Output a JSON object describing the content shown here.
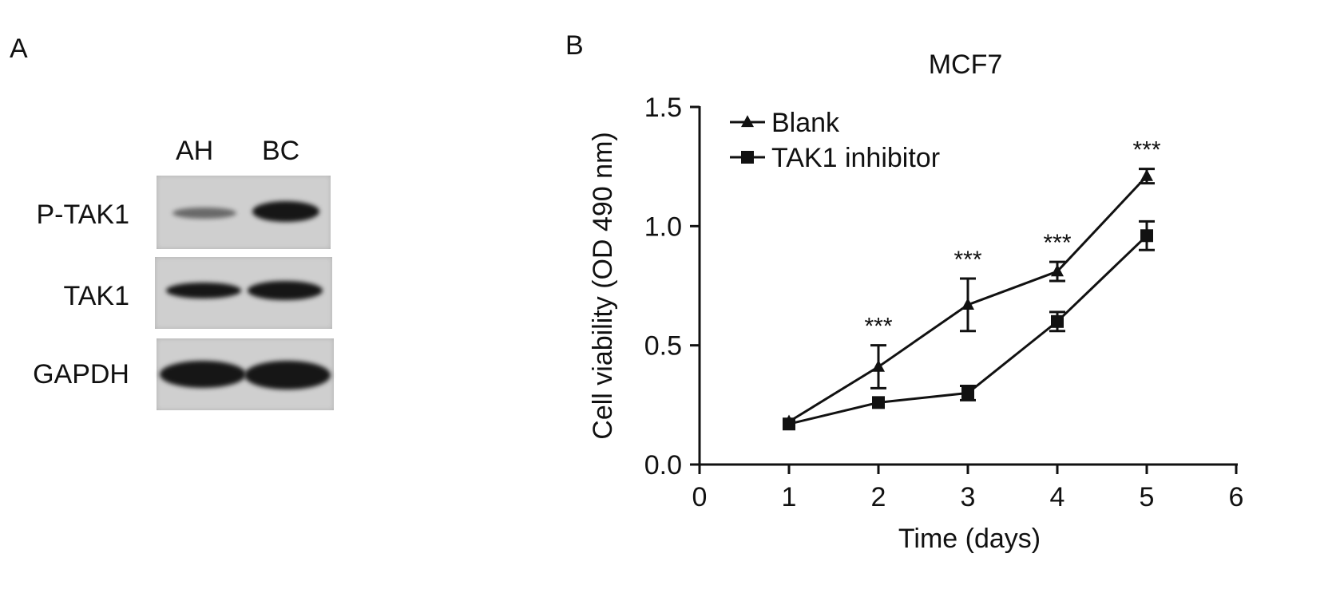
{
  "panels": {
    "a_letter": "A",
    "b_letter": "B"
  },
  "blot": {
    "lanes": [
      "AH",
      "BC"
    ],
    "rows": [
      {
        "label": "P-TAK1",
        "band_intensity": [
          0.35,
          1.0
        ]
      },
      {
        "label": "TAK1",
        "band_intensity": [
          0.85,
          0.9
        ]
      },
      {
        "label": "GAPDH",
        "band_intensity": [
          1.0,
          1.0
        ]
      }
    ]
  },
  "chart_data": {
    "type": "line",
    "title": "MCF7",
    "xlabel": "Time (days)",
    "ylabel": "Cell viability (OD 490 nm)",
    "xlim": [
      0,
      6
    ],
    "ylim": [
      0,
      1.5
    ],
    "xticks": [
      "0",
      "1",
      "2",
      "3",
      "4",
      "5",
      "6"
    ],
    "yticks": [
      "0.0",
      "0.5",
      "1.0",
      "1.5"
    ],
    "legend_position": "top-left",
    "series": [
      {
        "name": "Blank",
        "marker": "triangle",
        "x": [
          1,
          2,
          3,
          4,
          5
        ],
        "y": [
          0.18,
          0.41,
          0.67,
          0.81,
          1.21
        ],
        "err": [
          0.01,
          0.09,
          0.11,
          0.04,
          0.03
        ]
      },
      {
        "name": "TAK1 inhibitor",
        "marker": "square",
        "x": [
          1,
          2,
          3,
          4,
          5
        ],
        "y": [
          0.17,
          0.26,
          0.3,
          0.6,
          0.96
        ],
        "err": [
          0.01,
          0.01,
          0.03,
          0.04,
          0.06
        ]
      }
    ],
    "annotations": [
      {
        "x": 2,
        "text": "***"
      },
      {
        "x": 3,
        "text": "***"
      },
      {
        "x": 4,
        "text": "***"
      },
      {
        "x": 5,
        "text": "***"
      }
    ]
  }
}
